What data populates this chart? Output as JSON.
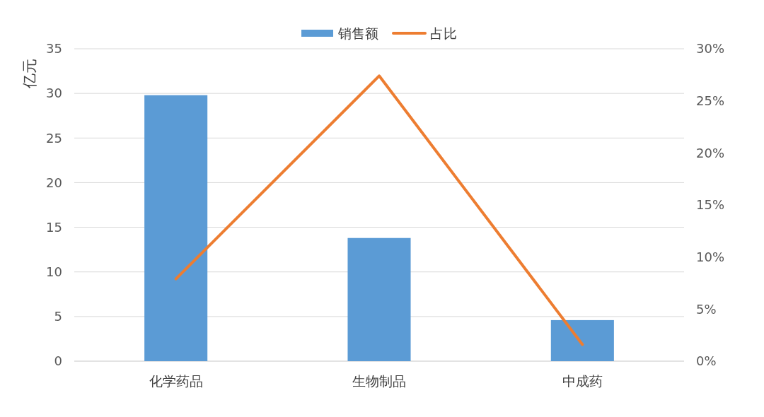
{
  "chart_data": {
    "type": "bar",
    "ylabel": "亿元",
    "categories": [
      "化学药品",
      "生物制品",
      "中成药"
    ],
    "series": [
      {
        "name": "销售额",
        "color": "#5b9bd5",
        "values": [
          29.8,
          13.8,
          4.6
        ]
      },
      {
        "name": "占比",
        "type": "line",
        "axis": "y2",
        "color": "#ed7d31",
        "values": [
          7.9,
          27.4,
          1.6
        ]
      }
    ],
    "ylim": [
      0,
      35
    ],
    "yticks": [
      0,
      5,
      10,
      15,
      20,
      25,
      30,
      35
    ],
    "y2lim": [
      0,
      30
    ],
    "y2ticks": [
      {
        "value": 0,
        "label": "0%"
      },
      {
        "value": 5,
        "label": "5%"
      },
      {
        "value": 10,
        "label": "10%"
      },
      {
        "value": 15,
        "label": "15%"
      },
      {
        "value": 20,
        "label": "20%"
      },
      {
        "value": 25,
        "label": "25%"
      },
      {
        "value": 30,
        "label": "30%"
      }
    ],
    "grid": "y",
    "legend": "top"
  }
}
